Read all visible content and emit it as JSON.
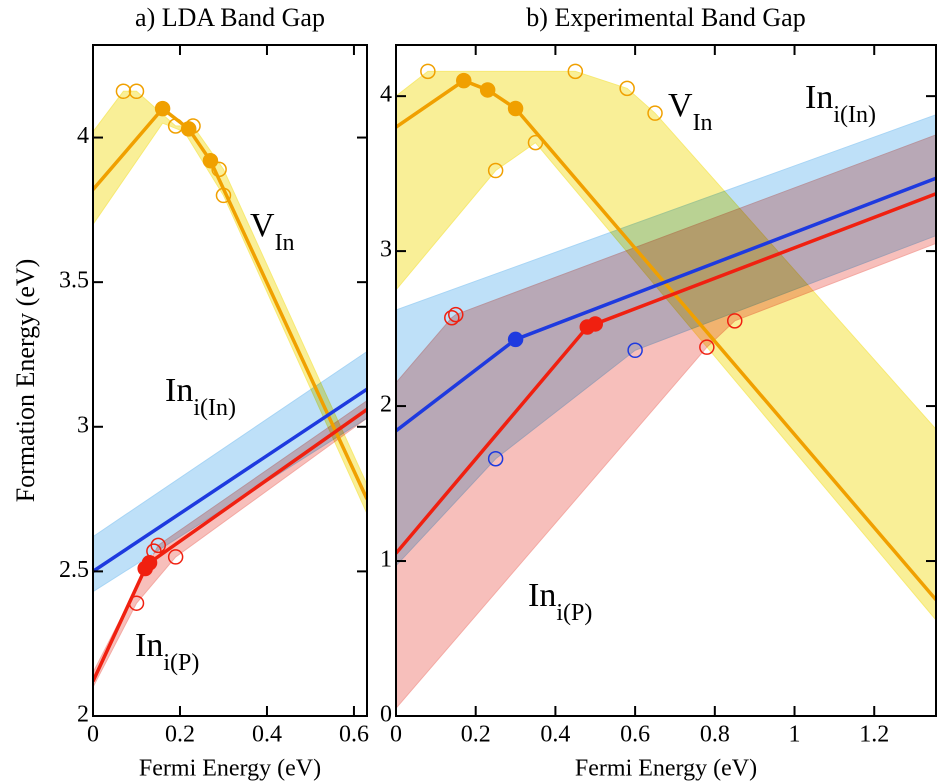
{
  "chart_data": [
    {
      "type": "line",
      "title": "a) LDA Band Gap",
      "xlabel": "Fermi Energy (eV)",
      "ylabel": "Formation Energy (eV)",
      "xlim": [
        0,
        0.63
      ],
      "ylim": [
        2,
        4.32
      ],
      "xticks": [
        0,
        0.2,
        0.4,
        0.6
      ],
      "yticks": [
        2,
        2.5,
        3,
        3.5,
        4
      ],
      "bands": [
        {
          "color": "#f7ea74",
          "upper": {
            "x": [
              0,
              0.07,
              0.1,
              0.19,
              0.23,
              0.3,
              0.63
            ],
            "values": [
              4.02,
              4.16,
              4.16,
              4.04,
              4.04,
              3.89,
              2.8
            ]
          },
          "lower": {
            "x": [
              0,
              0.16,
              0.21,
              0.3,
              0.63
            ],
            "values": [
              3.7,
              4.05,
              4.02,
              3.8,
              2.7
            ]
          }
        },
        {
          "color": "#a8d5f5",
          "upper": {
            "x": [
              0,
              0.63
            ],
            "values": [
              2.62,
              3.26
            ]
          },
          "lower": {
            "x": [
              0,
              0.63
            ],
            "values": [
              2.43,
              3.03
            ]
          }
        },
        {
          "color": "#f4aaa4",
          "upper": {
            "x": [
              0,
              0.15,
              0.63
            ],
            "values": [
              2.15,
              2.59,
              3.09
            ]
          },
          "lower": {
            "x": [
              0,
              0.1,
              0.19,
              0.63
            ],
            "values": [
              2.1,
              2.39,
              2.55,
              3.03
            ]
          }
        }
      ],
      "series": [
        {
          "color": "#f0a000",
          "x": [
            0,
            0.16,
            0.22,
            0.27,
            0.63
          ],
          "values": [
            3.82,
            4.1,
            4.03,
            3.92,
            2.75
          ]
        },
        {
          "color": "#1e3adf",
          "x": [
            0,
            0.63
          ],
          "values": [
            2.5,
            3.13
          ]
        },
        {
          "color": "#f02010",
          "x": [
            0,
            0.12,
            0.13,
            0.63
          ],
          "values": [
            2.12,
            2.51,
            2.53,
            3.06
          ]
        }
      ],
      "points": [
        {
          "color": "#f0a000",
          "filled": true,
          "x": [
            0.16,
            0.22,
            0.27
          ],
          "values": [
            4.1,
            4.03,
            3.92
          ]
        },
        {
          "color": "#f0a000",
          "filled": false,
          "x": [
            0.07,
            0.1,
            0.19,
            0.23,
            0.29,
            0.3
          ],
          "values": [
            4.16,
            4.16,
            4.04,
            4.04,
            3.89,
            3.8
          ]
        },
        {
          "color": "#f02010",
          "filled": true,
          "x": [
            0.12,
            0.13
          ],
          "values": [
            2.51,
            2.53
          ]
        },
        {
          "color": "#f02010",
          "filled": false,
          "x": [
            0.1,
            0.14,
            0.15,
            0.19
          ],
          "values": [
            2.39,
            2.57,
            2.59,
            2.55
          ]
        }
      ],
      "annotations": [
        {
          "text": "V",
          "subscript": "In"
        },
        {
          "text": "In",
          "subscript": "i(In)"
        },
        {
          "text": "In",
          "subscript": "i(P)"
        }
      ]
    },
    {
      "type": "line",
      "title": "b) Experimental Band Gap",
      "xlabel": "Fermi Energy (eV)",
      "xlim": [
        0,
        1.355
      ],
      "ylim": [
        0,
        4.33
      ],
      "xticks": [
        0,
        0.2,
        0.4,
        0.6,
        0.8,
        1,
        1.2
      ],
      "yticks": [
        0,
        1,
        2,
        3,
        4
      ],
      "bands": [
        {
          "color": "#f7ea74",
          "upper": {
            "x": [
              0,
              0.08,
              0.45,
              0.58,
              0.65,
              1.355
            ],
            "values": [
              4.0,
              4.16,
              4.16,
              4.05,
              3.89,
              1.85
            ]
          },
          "lower": {
            "x": [
              0,
              0.25,
              0.35,
              1.355
            ],
            "values": [
              2.75,
              3.52,
              3.7,
              0.62
            ]
          }
        },
        {
          "color": "#a8d5f5",
          "upper": {
            "x": [
              0,
              1.355
            ],
            "values": [
              2.62,
              3.88
            ]
          },
          "lower": {
            "x": [
              0,
              0.25,
              0.6,
              1.355
            ],
            "values": [
              0.97,
              1.66,
              2.36,
              3.1
            ]
          }
        },
        {
          "color": "#f4aaa4",
          "upper": {
            "x": [
              0,
              0.14,
              0.15,
              1.355
            ],
            "values": [
              2.15,
              2.57,
              2.59,
              3.75
            ]
          },
          "lower": {
            "x": [
              0,
              0.78,
              0.85,
              1.355
            ],
            "values": [
              0.05,
              2.38,
              2.55,
              3.05
            ]
          }
        }
      ],
      "series": [
        {
          "color": "#f0a000",
          "x": [
            0,
            0.17,
            0.23,
            0.3,
            1.355
          ],
          "values": [
            3.8,
            4.1,
            4.04,
            3.92,
            0.75
          ]
        },
        {
          "color": "#1e3adf",
          "x": [
            0,
            0.3,
            1.355
          ],
          "values": [
            1.84,
            2.43,
            3.47
          ]
        },
        {
          "color": "#f02010",
          "x": [
            0,
            0.48,
            0.5,
            1.355
          ],
          "values": [
            1.05,
            2.51,
            2.53,
            3.37
          ]
        }
      ],
      "points": [
        {
          "color": "#f0a000",
          "filled": true,
          "x": [
            0.17,
            0.23,
            0.3
          ],
          "values": [
            4.1,
            4.04,
            3.92
          ]
        },
        {
          "color": "#f0a000",
          "filled": false,
          "x": [
            0.08,
            0.45,
            0.58,
            0.65,
            0.25,
            0.35
          ],
          "values": [
            4.16,
            4.16,
            4.05,
            3.89,
            3.52,
            3.7
          ]
        },
        {
          "color": "#1e3adf",
          "filled": true,
          "x": [
            0.3
          ],
          "values": [
            2.43
          ]
        },
        {
          "color": "#1e3adf",
          "filled": false,
          "x": [
            0.25,
            0.6
          ],
          "values": [
            1.66,
            2.36
          ]
        },
        {
          "color": "#f02010",
          "filled": true,
          "x": [
            0.48,
            0.5
          ],
          "values": [
            2.51,
            2.53
          ]
        },
        {
          "color": "#f02010",
          "filled": false,
          "x": [
            0.14,
            0.15,
            0.78,
            0.85
          ],
          "values": [
            2.57,
            2.59,
            2.38,
            2.55
          ]
        }
      ],
      "annotations": [
        {
          "text": "V",
          "subscript": "In"
        },
        {
          "text": "In",
          "subscript": "i(In)"
        },
        {
          "text": "In",
          "subscript": "i(P)"
        }
      ]
    }
  ]
}
